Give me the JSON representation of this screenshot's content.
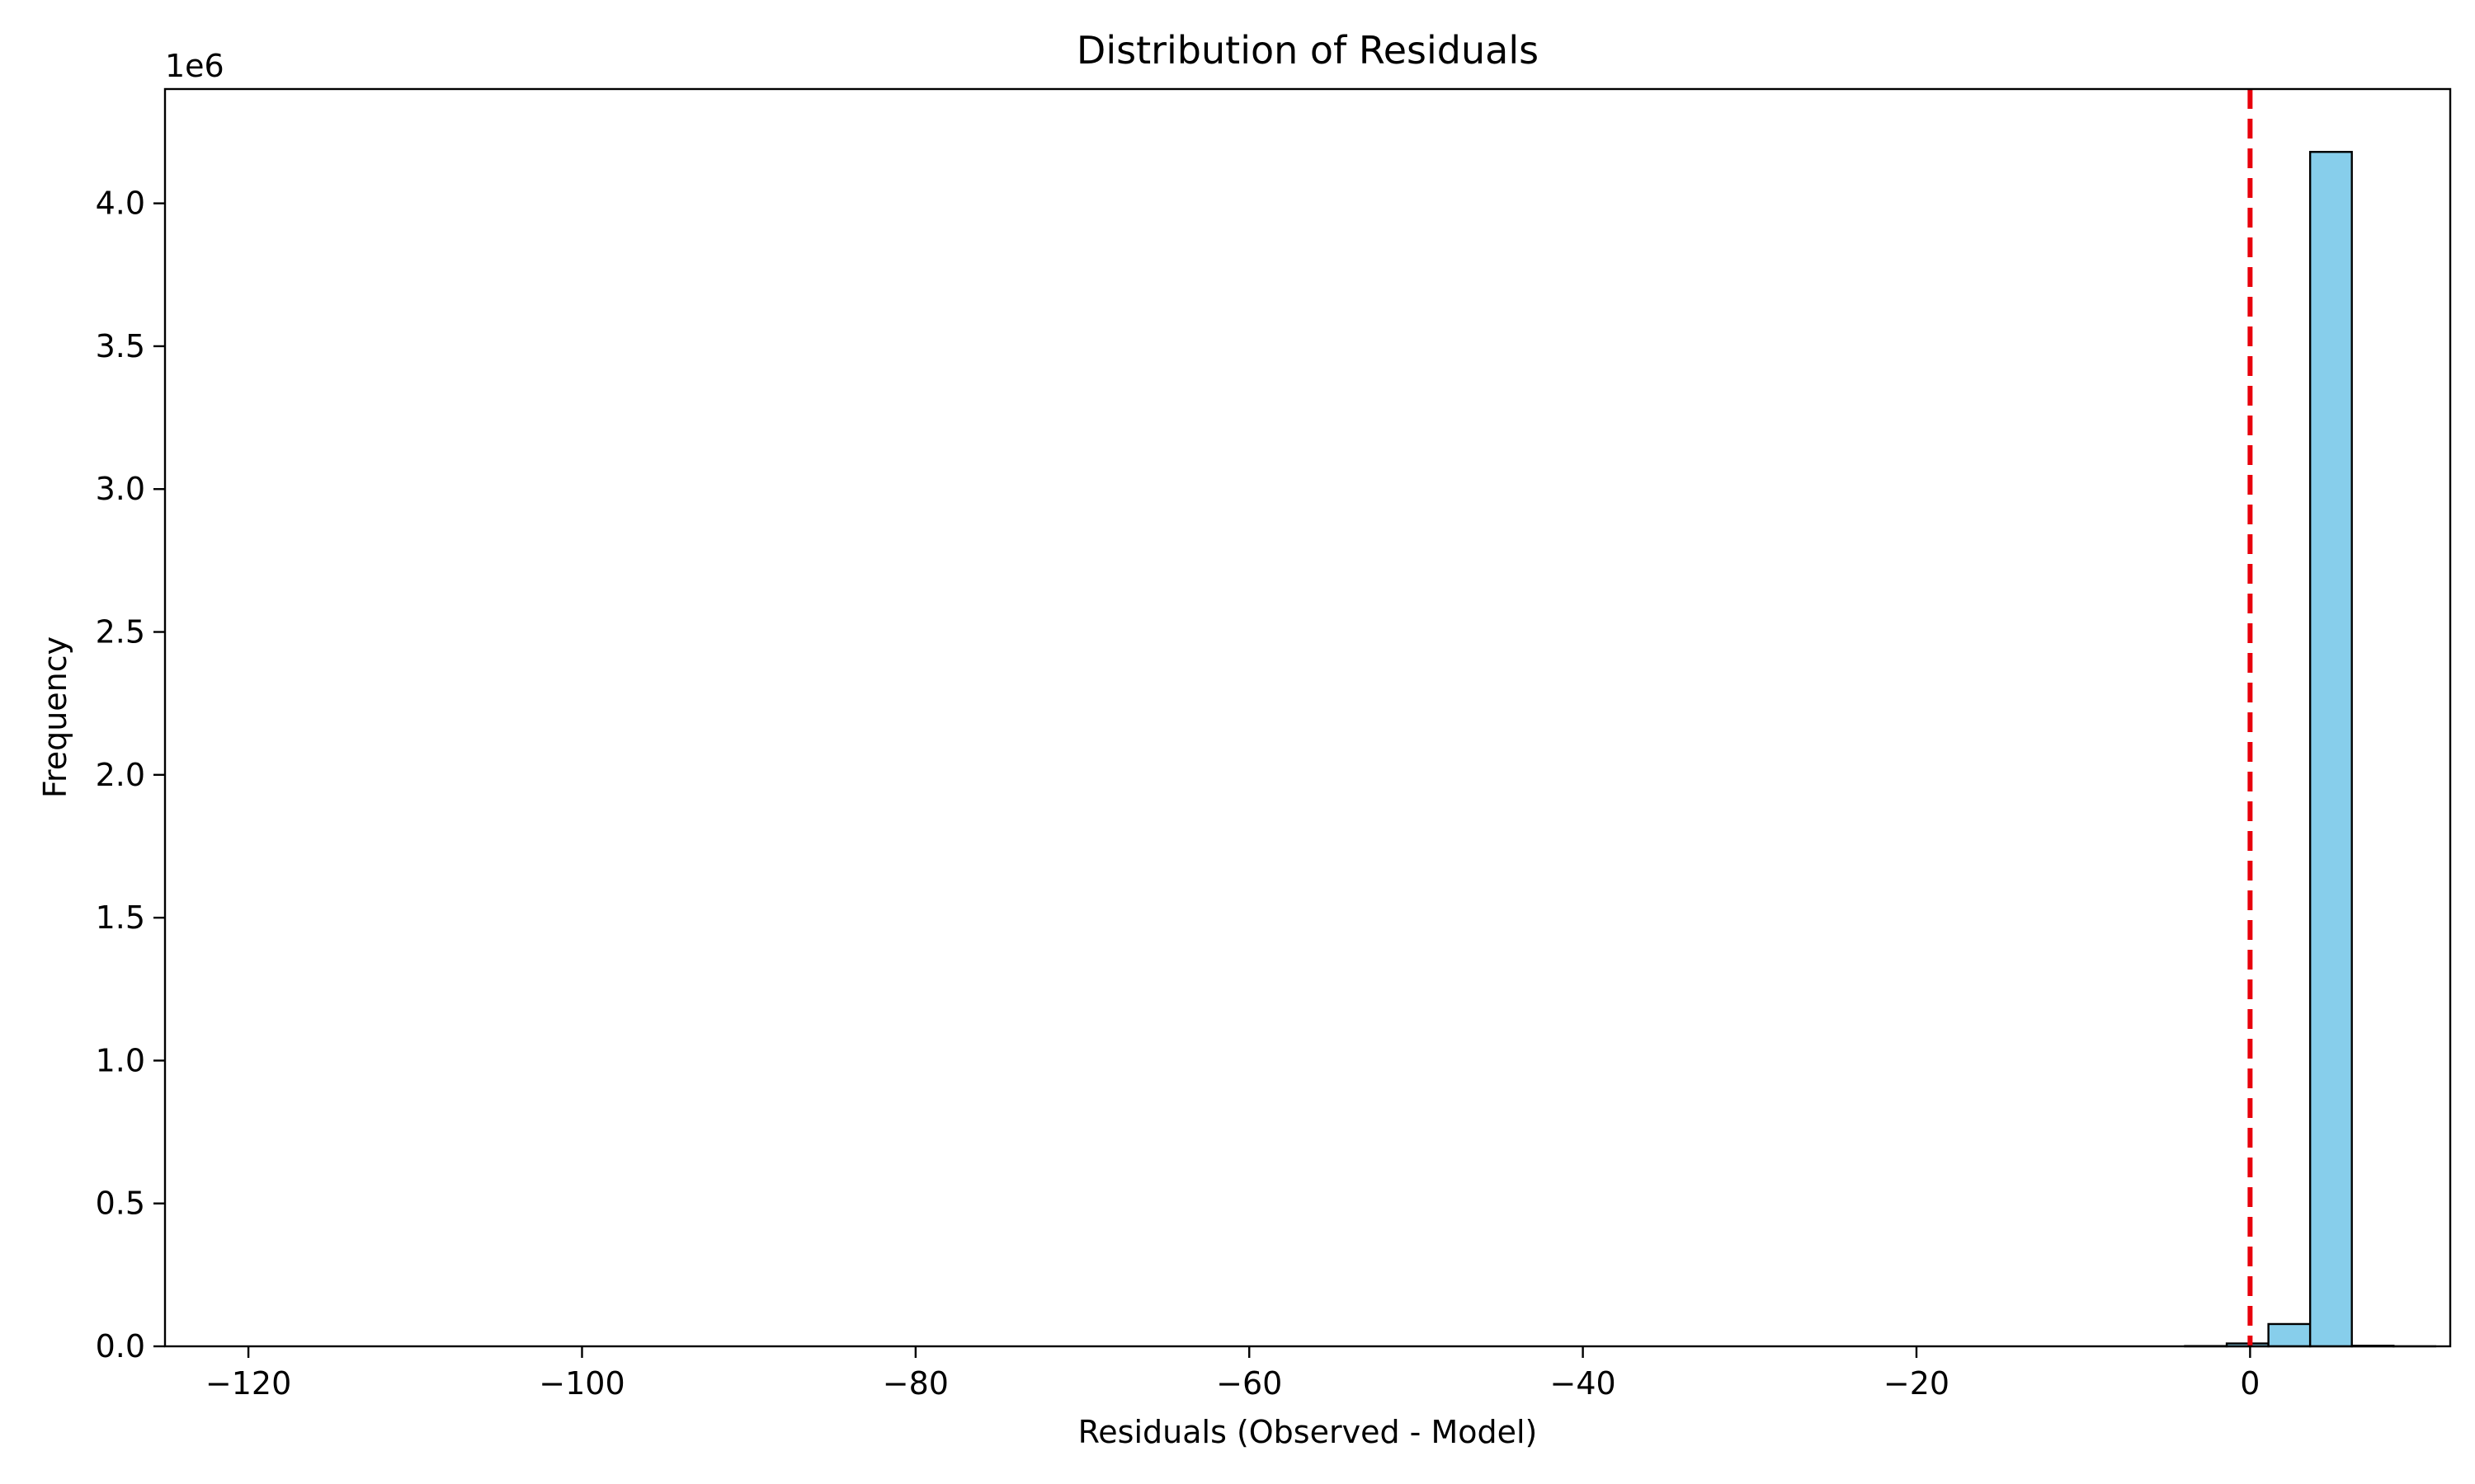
{
  "chart_data": {
    "type": "bar",
    "title": "Distribution of Residuals",
    "xlabel": "Residuals (Observed - Model)",
    "ylabel": "Frequency",
    "y_offset_label": "1e6",
    "y_scale": 1000000,
    "xlim": [
      -125,
      12
    ],
    "ylim": [
      0,
      4400000
    ],
    "x_ticks": [
      -120,
      -100,
      -80,
      -60,
      -40,
      -20,
      0
    ],
    "x_tick_labels": [
      "−120",
      "−100",
      "−80",
      "−60",
      "−40",
      "−20",
      "0"
    ],
    "y_ticks": [
      0,
      500000,
      1000000,
      1500000,
      2000000,
      2500000,
      3000000,
      3500000,
      4000000
    ],
    "y_tick_labels": [
      "0.0",
      "0.5",
      "1.0",
      "1.5",
      "2.0",
      "2.5",
      "3.0",
      "3.5",
      "4.0"
    ],
    "bin_start": -118.9,
    "bin_width": 2.5,
    "counts": [
      0,
      0,
      0,
      0,
      0,
      0,
      0,
      0,
      0,
      0,
      0,
      0,
      0,
      0,
      0,
      0,
      0,
      0,
      0,
      0,
      0,
      0,
      0,
      0,
      0,
      0,
      0,
      0,
      0,
      0,
      0,
      0,
      0,
      0,
      0,
      0,
      0,
      0,
      0,
      0,
      0,
      0,
      0,
      0,
      0,
      0,
      1000,
      10000,
      78000,
      4180000,
      2000,
      100
    ],
    "bar_color": "#87ceeb",
    "bar_edge_color": "#000000",
    "reference_line": {
      "x": 0,
      "color": "#e8000b",
      "style": "dashed"
    },
    "grid": false,
    "legend": false
  }
}
